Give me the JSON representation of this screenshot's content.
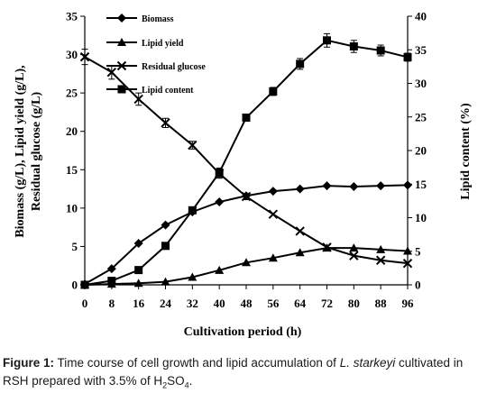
{
  "chart_data": {
    "type": "line",
    "xlabel": "Cultivation period (h)",
    "ylabel_left_line1": "Biomass (g/L), Lipid yield (g/L),",
    "ylabel_left_line2": "Residual glucose (g/L)",
    "ylabel_right": "Lipid content (%)",
    "x": [
      0,
      8,
      16,
      24,
      32,
      40,
      48,
      56,
      64,
      72,
      80,
      88,
      96
    ],
    "xlim": [
      0,
      96
    ],
    "ylim_left": [
      0,
      35
    ],
    "ylim_right": [
      0,
      40
    ],
    "left_ticks": [
      "0",
      "5",
      "10",
      "15",
      "20",
      "25",
      "30",
      "35"
    ],
    "right_ticks": [
      "0",
      "5",
      "10",
      "15",
      "20",
      "25",
      "30",
      "35",
      "40"
    ],
    "x_ticks": [
      "0",
      "8",
      "16",
      "24",
      "32",
      "40",
      "48",
      "56",
      "64",
      "72",
      "80",
      "88",
      "96"
    ],
    "legend_position": "top-left inside",
    "series": [
      {
        "name": "Biomass",
        "axis": "left",
        "marker": "diamond",
        "values": [
          0.1,
          2.1,
          5.4,
          7.8,
          9.5,
          10.8,
          11.6,
          12.2,
          12.5,
          12.9,
          12.8,
          12.9,
          13.0
        ]
      },
      {
        "name": "Lipid yield",
        "axis": "left",
        "marker": "triangle",
        "values": [
          0,
          0.1,
          0.2,
          0.4,
          1.0,
          1.9,
          2.9,
          3.5,
          4.2,
          4.8,
          4.8,
          4.6,
          4.4
        ]
      },
      {
        "name": "Residual glucose",
        "axis": "left",
        "marker": "x",
        "values": [
          29.7,
          27.7,
          24.2,
          21.1,
          18.2,
          14.5,
          11.5,
          9.2,
          7.0,
          4.9,
          3.8,
          3.2,
          2.8
        ],
        "errors": [
          1.0,
          0.9,
          0.8,
          0.6,
          0.5,
          0.6,
          0.4,
          0,
          0,
          0,
          0,
          0,
          0
        ]
      },
      {
        "name": "Lipid content",
        "axis": "right",
        "marker": "square",
        "values": [
          0,
          0.6,
          2.2,
          5.8,
          11.1,
          16.7,
          24.9,
          28.8,
          32.9,
          36.4,
          35.5,
          34.9,
          33.9
        ],
        "errors": [
          0,
          0,
          0,
          0,
          0,
          0.7,
          0.5,
          0.6,
          0.8,
          1.0,
          0.9,
          0.8,
          0.6
        ]
      }
    ]
  },
  "caption": {
    "label": "Figure 1:",
    "text_before_italic": " Time course of cell growth and lipid accumulation of ",
    "italic": "L. starkeyi",
    "text_after_italic": " cultivated in RSH prepared with 3.5% of H",
    "subscript_2": "2",
    "so": "SO",
    "subscript_4": "4",
    "end": "."
  }
}
